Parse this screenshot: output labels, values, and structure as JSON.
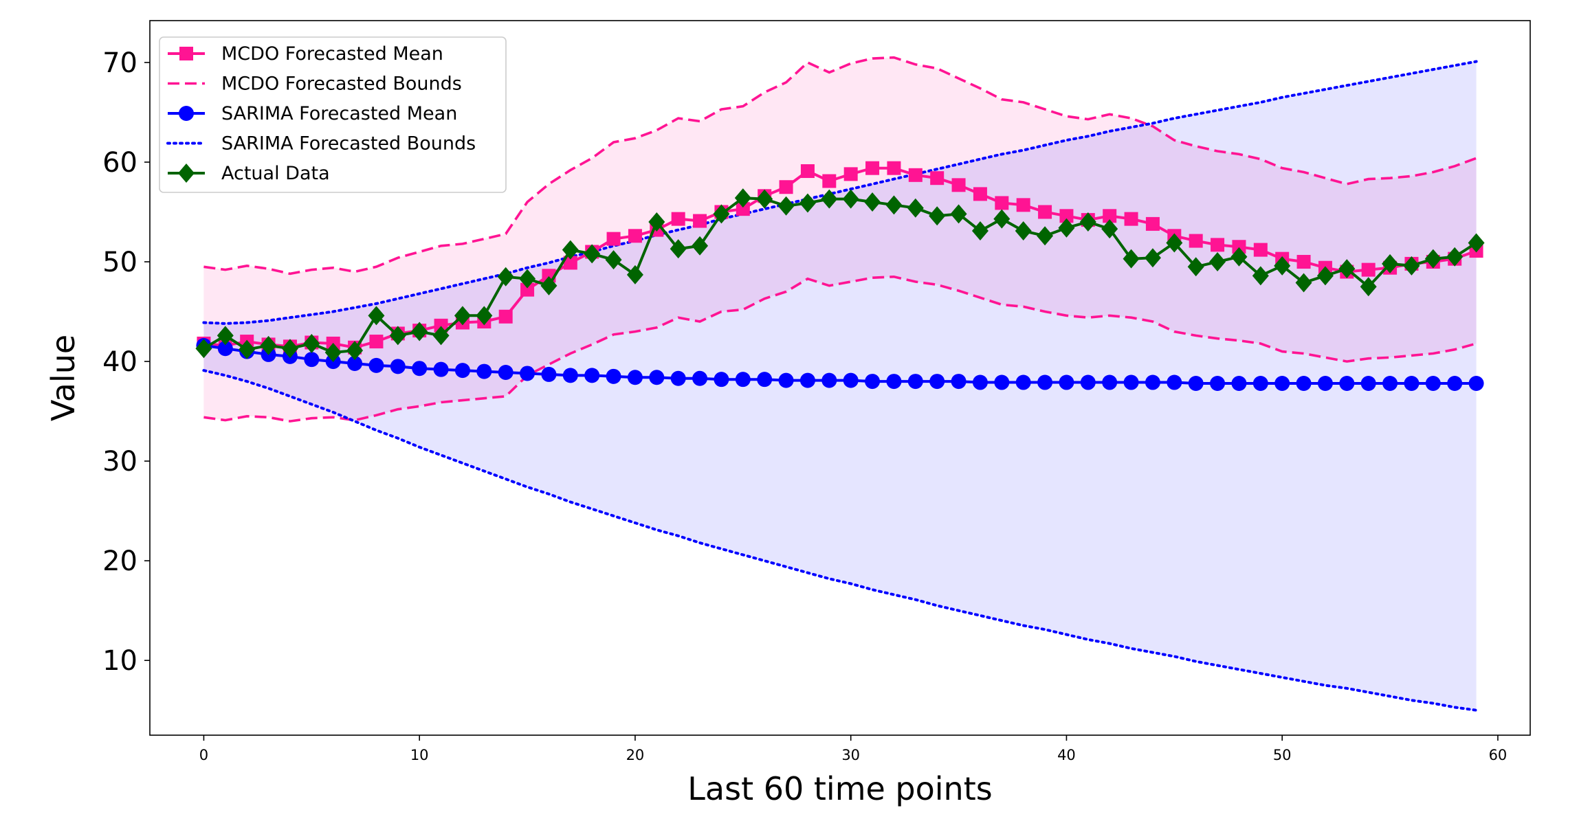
{
  "chart_data": {
    "type": "line",
    "title": "",
    "xlabel": "Last 60 time points",
    "ylabel": "Value",
    "xlim": [
      -2.5,
      61.5
    ],
    "ylim": [
      2.5,
      74.2
    ],
    "xticks": [
      0,
      10,
      20,
      30,
      40,
      50,
      60
    ],
    "yticks": [
      10,
      20,
      30,
      40,
      50,
      60,
      70
    ],
    "grid": false,
    "legend": "top-left",
    "x": [
      0,
      1,
      2,
      3,
      4,
      5,
      6,
      7,
      8,
      9,
      10,
      11,
      12,
      13,
      14,
      15,
      16,
      17,
      18,
      19,
      20,
      21,
      22,
      23,
      24,
      25,
      26,
      27,
      28,
      29,
      30,
      31,
      32,
      33,
      34,
      35,
      36,
      37,
      38,
      39,
      40,
      41,
      42,
      43,
      44,
      45,
      46,
      47,
      48,
      49,
      50,
      51,
      52,
      53,
      54,
      55,
      56,
      57,
      58,
      59
    ],
    "series": [
      {
        "name": "MCDO Forecasted Mean",
        "color": "#ff1493",
        "style": "solid",
        "marker": "square",
        "values": [
          41.8,
          41.6,
          42.0,
          41.7,
          41.5,
          41.9,
          41.8,
          41.4,
          42.0,
          42.8,
          43.1,
          43.6,
          43.9,
          44.0,
          44.5,
          47.2,
          48.6,
          49.9,
          51.0,
          52.3,
          52.6,
          53.2,
          54.3,
          54.1,
          55.0,
          55.3,
          56.6,
          57.5,
          59.1,
          58.1,
          58.8,
          59.4,
          59.4,
          58.7,
          58.4,
          57.7,
          56.8,
          55.9,
          55.7,
          55.0,
          54.6,
          54.2,
          54.6,
          54.3,
          53.8,
          52.6,
          52.1,
          51.7,
          51.5,
          51.2,
          50.3,
          50.0,
          49.4,
          49.0,
          49.2,
          49.4,
          49.8,
          50.0,
          50.3,
          51.1
        ]
      },
      {
        "name": "MCDO Forecasted Bounds",
        "color": "#ff1493",
        "style": "dashed",
        "upper": [
          49.5,
          49.2,
          49.6,
          49.3,
          48.8,
          49.2,
          49.4,
          49.0,
          49.5,
          50.4,
          51.0,
          51.6,
          51.8,
          52.3,
          52.8,
          56.0,
          57.8,
          59.2,
          60.4,
          62.0,
          62.4,
          63.2,
          64.4,
          64.1,
          65.3,
          65.6,
          67.0,
          68.0,
          70.0,
          69.0,
          69.9,
          70.4,
          70.5,
          69.8,
          69.4,
          68.4,
          67.4,
          66.3,
          66.0,
          65.3,
          64.6,
          64.3,
          64.8,
          64.4,
          63.6,
          62.2,
          61.6,
          61.1,
          60.8,
          60.3,
          59.4,
          59.0,
          58.4,
          57.8,
          58.3,
          58.4,
          58.6,
          59.0,
          59.6,
          60.4
        ],
        "lower": [
          34.4,
          34.1,
          34.5,
          34.4,
          34.0,
          34.3,
          34.4,
          34.1,
          34.6,
          35.2,
          35.5,
          35.9,
          36.1,
          36.3,
          36.5,
          38.6,
          39.7,
          40.8,
          41.7,
          42.7,
          43.0,
          43.4,
          44.4,
          44.0,
          45.0,
          45.2,
          46.3,
          47.0,
          48.3,
          47.6,
          48.0,
          48.4,
          48.5,
          48.0,
          47.7,
          47.1,
          46.4,
          45.7,
          45.5,
          45.0,
          44.6,
          44.4,
          44.6,
          44.4,
          44.0,
          43.0,
          42.6,
          42.3,
          42.1,
          41.8,
          41.0,
          40.8,
          40.4,
          40.0,
          40.3,
          40.4,
          40.6,
          40.8,
          41.2,
          41.8
        ]
      },
      {
        "name": "SARIMA Forecasted Mean",
        "color": "#0000ff",
        "style": "solid",
        "marker": "circle",
        "values": [
          41.6,
          41.3,
          41.0,
          40.7,
          40.5,
          40.2,
          40.0,
          39.8,
          39.6,
          39.5,
          39.3,
          39.2,
          39.1,
          39.0,
          38.9,
          38.8,
          38.7,
          38.6,
          38.6,
          38.5,
          38.4,
          38.4,
          38.3,
          38.3,
          38.2,
          38.2,
          38.2,
          38.1,
          38.1,
          38.1,
          38.1,
          38.0,
          38.0,
          38.0,
          38.0,
          38.0,
          37.9,
          37.9,
          37.9,
          37.9,
          37.9,
          37.9,
          37.9,
          37.9,
          37.9,
          37.9,
          37.8,
          37.8,
          37.8,
          37.8,
          37.8,
          37.8,
          37.8,
          37.8,
          37.8,
          37.8,
          37.8,
          37.8,
          37.8,
          37.8
        ]
      },
      {
        "name": "SARIMA Forecasted Bounds",
        "color": "#0000ff",
        "style": "dotted",
        "upper": [
          43.9,
          43.8,
          43.9,
          44.1,
          44.4,
          44.7,
          45.0,
          45.4,
          45.8,
          46.3,
          46.8,
          47.3,
          47.8,
          48.3,
          48.8,
          49.4,
          49.9,
          50.5,
          51.0,
          51.6,
          52.1,
          52.7,
          53.2,
          53.7,
          54.3,
          54.8,
          55.3,
          55.8,
          56.3,
          56.8,
          57.3,
          57.8,
          58.3,
          58.8,
          59.3,
          59.8,
          60.3,
          60.8,
          61.2,
          61.7,
          62.2,
          62.6,
          63.1,
          63.5,
          63.9,
          64.4,
          64.8,
          65.2,
          65.6,
          66.0,
          66.5,
          66.9,
          67.3,
          67.7,
          68.1,
          68.5,
          68.9,
          69.3,
          69.7,
          70.1
        ],
        "lower": [
          39.1,
          38.6,
          38.0,
          37.3,
          36.5,
          35.7,
          34.9,
          34.0,
          33.1,
          32.3,
          31.4,
          30.6,
          29.8,
          29.0,
          28.2,
          27.4,
          26.7,
          25.9,
          25.2,
          24.5,
          23.8,
          23.1,
          22.5,
          21.8,
          21.2,
          20.6,
          20.0,
          19.4,
          18.8,
          18.2,
          17.7,
          17.1,
          16.6,
          16.1,
          15.5,
          15.0,
          14.5,
          14.0,
          13.5,
          13.1,
          12.6,
          12.1,
          11.7,
          11.2,
          10.8,
          10.4,
          9.9,
          9.5,
          9.1,
          8.7,
          8.3,
          7.9,
          7.5,
          7.2,
          6.8,
          6.4,
          6.0,
          5.7,
          5.3,
          5.0
        ]
      },
      {
        "name": "Actual Data",
        "color": "#006400",
        "style": "solid",
        "marker": "diamond",
        "values": [
          41.3,
          42.6,
          41.2,
          41.6,
          41.3,
          41.8,
          40.9,
          41.1,
          44.6,
          42.6,
          43.0,
          42.6,
          44.6,
          44.6,
          48.5,
          48.3,
          47.6,
          51.2,
          50.8,
          50.2,
          48.7,
          54.0,
          51.3,
          51.6,
          54.8,
          56.4,
          56.3,
          55.6,
          55.9,
          56.3,
          56.3,
          56.0,
          55.7,
          55.4,
          54.6,
          54.8,
          53.1,
          54.3,
          53.1,
          52.6,
          53.4,
          54.0,
          53.3,
          50.3,
          50.4,
          51.9,
          49.5,
          50.0,
          50.5,
          48.6,
          49.6,
          47.9,
          48.6,
          49.3,
          47.5,
          49.8,
          49.6,
          50.3,
          50.5,
          51.9
        ]
      }
    ]
  }
}
